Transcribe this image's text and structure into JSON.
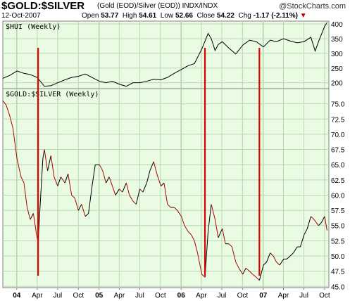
{
  "header": {
    "title": "$GOLD:$SILVER",
    "subtitle": "(Gold (EOD)/Silver (EOD))",
    "exchange": "INDX/INDX",
    "brand": "@StockCharts.com",
    "date": "12-Oct-2007",
    "open_label": "Open",
    "open": "53.77",
    "high_label": "High",
    "high": "54.61",
    "low_label": "Low",
    "low": "52.66",
    "close_label": "Close",
    "close": "54.22",
    "chg_label": "Chg",
    "chg": "-1.17 (-2.11%)",
    "chg_marker": "▼"
  },
  "colors": {
    "panel_bg": "#e9fbe3",
    "grid": "#b8d8b0",
    "hui_line": "#000000",
    "ratio_up": "#000000",
    "ratio_down": "#b00000",
    "marker": "#dd0000"
  },
  "chart_data": [
    {
      "type": "line",
      "label": "$HUI (Weekly)",
      "ylim": [
        180,
        410
      ],
      "yticks": [
        200,
        250,
        300,
        350,
        400
      ],
      "x": [
        "2003-10-31",
        "2003-12-01",
        "2004-01-02",
        "2004-02-02",
        "2004-03-01",
        "2004-04-01",
        "2004-05-03",
        "2004-06-01",
        "2004-07-01",
        "2004-08-02",
        "2004-09-01",
        "2004-10-01",
        "2004-11-01",
        "2004-12-01",
        "2005-01-03",
        "2005-02-01",
        "2005-03-01",
        "2005-04-01",
        "2005-05-02",
        "2005-06-01",
        "2005-07-01",
        "2005-08-01",
        "2005-09-01",
        "2005-10-03",
        "2005-11-01",
        "2005-12-01",
        "2006-01-02",
        "2006-02-01",
        "2006-03-01",
        "2006-04-03",
        "2006-05-01",
        "2006-05-15",
        "2006-06-01",
        "2006-06-15",
        "2006-07-03",
        "2006-08-01",
        "2006-09-01",
        "2006-10-02",
        "2006-11-01",
        "2006-12-01",
        "2007-01-02",
        "2007-02-01",
        "2007-03-01",
        "2007-04-02",
        "2007-05-01",
        "2007-06-01",
        "2007-07-02",
        "2007-08-01",
        "2007-08-20",
        "2007-09-04",
        "2007-10-01",
        "2007-10-12"
      ],
      "values": [
        215,
        225,
        240,
        232,
        228,
        218,
        188,
        190,
        200,
        210,
        218,
        222,
        230,
        218,
        205,
        200,
        205,
        195,
        188,
        200,
        200,
        205,
        212,
        210,
        218,
        232,
        245,
        258,
        265,
        315,
        368,
        350,
        310,
        330,
        340,
        318,
        298,
        328,
        345,
        340,
        322,
        345,
        340,
        350,
        342,
        336,
        340,
        355,
        308,
        340,
        392,
        405
      ]
    },
    {
      "type": "line",
      "label": "$GOLD:$SILVER (Weekly)",
      "ylim": [
        44.8,
        77.5
      ],
      "yticks": [
        45.0,
        47.5,
        50.0,
        52.5,
        55.0,
        57.5,
        60.0,
        62.5,
        65.0,
        67.5,
        70.0,
        72.5,
        75.0
      ],
      "x": [
        "2003-10-31",
        "2003-11-15",
        "2003-12-01",
        "2003-12-15",
        "2004-01-02",
        "2004-01-20",
        "2004-02-02",
        "2004-02-16",
        "2004-03-01",
        "2004-03-15",
        "2004-03-29",
        "2004-04-05",
        "2004-04-12",
        "2004-04-26",
        "2004-05-03",
        "2004-05-17",
        "2004-06-01",
        "2004-06-15",
        "2004-07-01",
        "2004-07-15",
        "2004-08-02",
        "2004-08-16",
        "2004-09-01",
        "2004-09-15",
        "2004-10-01",
        "2004-10-15",
        "2004-11-01",
        "2004-11-15",
        "2004-12-01",
        "2004-12-15",
        "2005-01-03",
        "2005-01-17",
        "2005-02-01",
        "2005-02-15",
        "2005-03-01",
        "2005-03-15",
        "2005-04-01",
        "2005-04-15",
        "2005-05-02",
        "2005-05-16",
        "2005-06-01",
        "2005-06-15",
        "2005-07-01",
        "2005-07-15",
        "2005-08-01",
        "2005-08-15",
        "2005-09-01",
        "2005-09-15",
        "2005-10-03",
        "2005-10-17",
        "2005-11-01",
        "2005-11-15",
        "2005-12-01",
        "2005-12-15",
        "2006-01-02",
        "2006-01-16",
        "2006-02-01",
        "2006-02-15",
        "2006-03-01",
        "2006-03-15",
        "2006-04-03",
        "2006-04-17",
        "2006-05-01",
        "2006-05-15",
        "2006-06-01",
        "2006-06-15",
        "2006-07-03",
        "2006-07-17",
        "2006-08-01",
        "2006-08-15",
        "2006-09-01",
        "2006-09-15",
        "2006-10-02",
        "2006-10-16",
        "2006-11-01",
        "2006-11-15",
        "2006-12-01",
        "2006-12-15",
        "2007-01-02",
        "2007-01-16",
        "2007-02-01",
        "2007-02-15",
        "2007-03-01",
        "2007-03-15",
        "2007-04-02",
        "2007-04-16",
        "2007-05-01",
        "2007-05-15",
        "2007-06-01",
        "2007-06-15",
        "2007-07-02",
        "2007-07-16",
        "2007-08-01",
        "2007-08-15",
        "2007-09-04",
        "2007-09-17",
        "2007-10-01",
        "2007-10-12"
      ],
      "values": [
        75.5,
        74.8,
        73.0,
        71.0,
        66.0,
        63.0,
        62.0,
        58.0,
        56.0,
        57.0,
        53.5,
        52.2,
        57.0,
        66.0,
        67.5,
        64.0,
        66.5,
        63.0,
        61.5,
        63.0,
        62.0,
        63.5,
        60.0,
        59.5,
        57.5,
        58.5,
        56.5,
        57.0,
        61.5,
        65.0,
        65.0,
        64.0,
        62.0,
        63.0,
        61.5,
        60.0,
        61.0,
        60.5,
        62.0,
        60.0,
        59.0,
        58.5,
        61.0,
        60.5,
        62.0,
        64.0,
        65.5,
        63.5,
        61.5,
        62.0,
        58.5,
        58.0,
        58.0,
        57.5,
        56.5,
        55.0,
        54.0,
        53.5,
        52.5,
        50.5,
        47.0,
        46.5,
        54.0,
        58.5,
        56.0,
        53.0,
        54.5,
        52.0,
        52.0,
        51.5,
        49.0,
        48.0,
        47.0,
        48.0,
        47.5,
        47.0,
        46.5,
        46.0,
        48.5,
        49.0,
        50.5,
        50.0,
        49.0,
        48.5,
        49.5,
        49.5,
        50.0,
        50.5,
        51.5,
        51.5,
        53.5,
        54.5,
        56.5,
        56.0,
        55.0,
        55.5,
        56.5,
        54.2
      ]
    }
  ],
  "x_axis": {
    "ticks": [
      {
        "label": "04",
        "date": "2004-01-01",
        "major": true
      },
      {
        "label": "Apr",
        "date": "2004-04-01"
      },
      {
        "label": "Jul",
        "date": "2004-07-01"
      },
      {
        "label": "Oct",
        "date": "2004-10-01"
      },
      {
        "label": "05",
        "date": "2005-01-01",
        "major": true
      },
      {
        "label": "Apr",
        "date": "2005-04-01"
      },
      {
        "label": "Jul",
        "date": "2005-07-01"
      },
      {
        "label": "Oct",
        "date": "2005-10-01"
      },
      {
        "label": "06",
        "date": "2006-01-01",
        "major": true
      },
      {
        "label": "Apr",
        "date": "2006-04-01"
      },
      {
        "label": "Jul",
        "date": "2006-07-01"
      },
      {
        "label": "Oct",
        "date": "2006-10-01"
      },
      {
        "label": "07",
        "date": "2007-01-01",
        "major": true
      },
      {
        "label": "Apr",
        "date": "2007-04-01"
      },
      {
        "label": "Jul",
        "date": "2007-07-01"
      },
      {
        "label": "Oct",
        "date": "2007-10-01"
      }
    ],
    "range": [
      "2003-10-31",
      "2007-10-20"
    ]
  },
  "annotations": [
    {
      "type": "vertical-marker",
      "date": "2004-04-05"
    },
    {
      "type": "vertical-marker",
      "date": "2006-04-17"
    },
    {
      "type": "vertical-marker",
      "date": "2006-12-15"
    }
  ]
}
